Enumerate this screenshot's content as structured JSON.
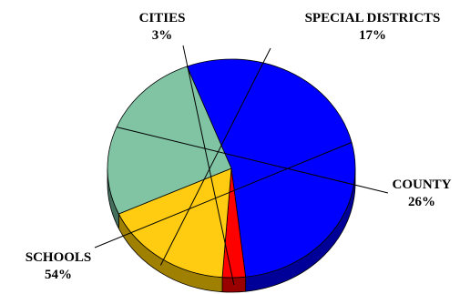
{
  "chart_data": {
    "type": "pie",
    "title": "",
    "categories": [
      "SCHOOLS",
      "CITIES",
      "SPECIAL DISTRICTS",
      "COUNTY"
    ],
    "values": [
      54,
      3,
      17,
      26
    ],
    "value_labels": [
      "54%",
      "3%",
      "17%",
      "26%"
    ],
    "colors": [
      "#0000ff",
      "#ff0000",
      "#ffcc11",
      "#80c4a4"
    ],
    "side_colors": [
      "#000099",
      "#990000",
      "#a08000",
      "#446f5c"
    ],
    "style": "3d",
    "legend": "none"
  }
}
